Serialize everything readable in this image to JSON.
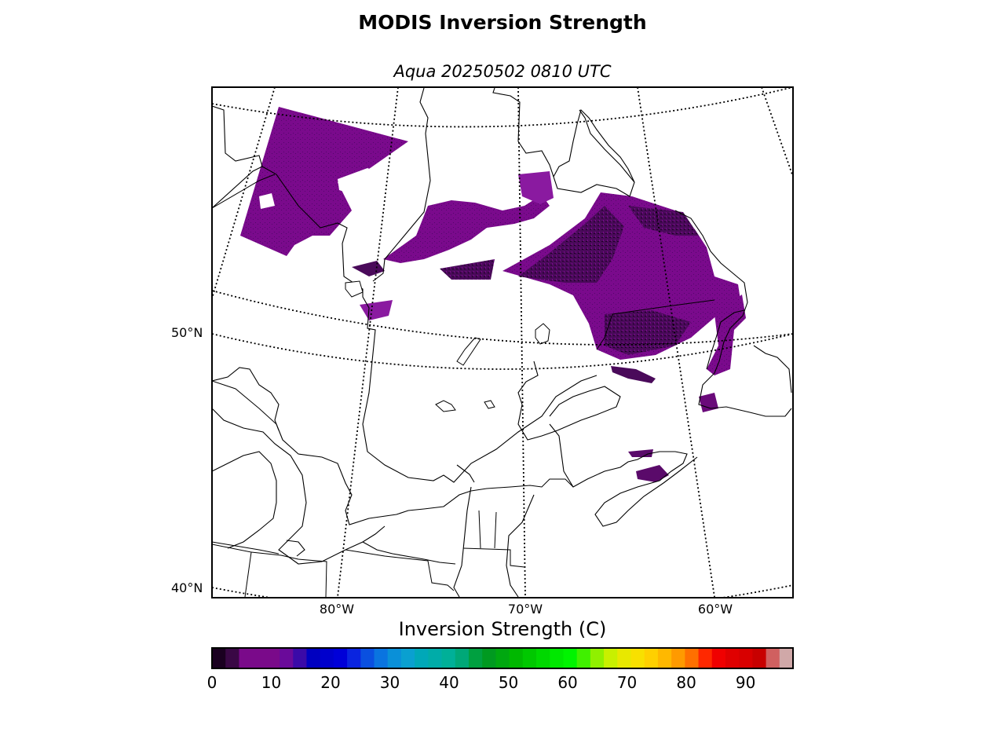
{
  "title": "MODIS Inversion Strength",
  "subtitle": "Aqua 20250502 0810 UTC",
  "map": {
    "latitude_labels": [
      "50°N",
      "40°N"
    ],
    "longitude_labels": [
      "80°W",
      "70°W",
      "60°W"
    ],
    "data_color": "#7a0a8c",
    "data_color_dark": "#3c0a4a"
  },
  "colorbar": {
    "label": "Inversion Strength (C)",
    "tick_labels": [
      "0",
      "10",
      "20",
      "30",
      "40",
      "50",
      "60",
      "70",
      "80",
      "90"
    ],
    "min": 0,
    "max": 98,
    "colors": [
      "#1a0020",
      "#3a0845",
      "#7a0a8a",
      "#7a0a8a",
      "#7a0a8a",
      "#6a0a9a",
      "#3a0aa8",
      "#0000c0",
      "#0000cc",
      "#0000d8",
      "#0a24e0",
      "#0a50e0",
      "#0a74e0",
      "#0a90d8",
      "#0aa0d0",
      "#00a8b8",
      "#00aca8",
      "#00b098",
      "#00a878",
      "#00a040",
      "#009a20",
      "#00a810",
      "#00b800",
      "#00c800",
      "#00d800",
      "#00e800",
      "#00f400",
      "#40f000",
      "#90f000",
      "#c8f000",
      "#e8e800",
      "#f8e000",
      "#ffd000",
      "#ffb800",
      "#ff9a00",
      "#ff7000",
      "#ff2800",
      "#f00000",
      "#e00000",
      "#d80000",
      "#c80000",
      "#d06060",
      "#d0a8a8"
    ]
  }
}
